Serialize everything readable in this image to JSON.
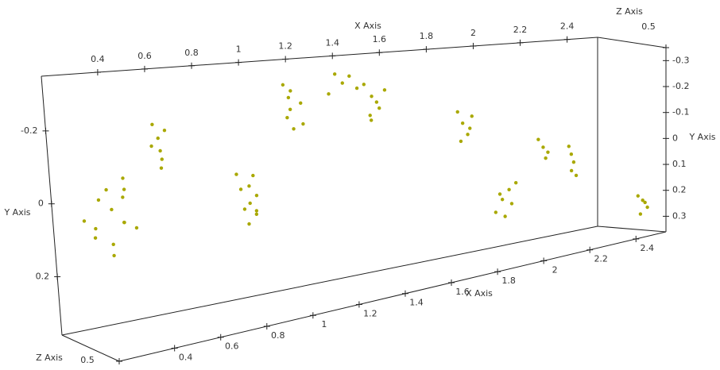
{
  "chart_data": {
    "type": "scatter3d",
    "x_label": "X Axis",
    "y_label": "Y Axis",
    "z_label": "Z Axis",
    "color": "#a9a800",
    "xlim": [
      0.16,
      2.53
    ],
    "ylim": [
      -0.35,
      0.36
    ],
    "zlim": [
      -0.3,
      0.5
    ],
    "xticks": [
      0.4,
      0.6,
      0.8,
      1,
      1.2,
      1.4,
      1.6,
      1.8,
      2,
      2.2,
      2.4
    ],
    "yticks_left": [
      -0.2,
      0,
      0.2
    ],
    "yticks_right": [
      -0.3,
      -0.2,
      -0.1,
      0,
      0.1,
      0.2,
      0.3
    ],
    "zticks": [
      0.5
    ],
    "x": [
      0.18,
      0.22,
      0.25,
      0.27,
      0.3,
      0.31,
      0.33,
      0.35,
      0.38,
      0.4,
      0.28,
      0.24,
      0.36,
      0.32,
      0.5,
      0.52,
      0.54,
      0.51,
      0.55,
      0.53,
      0.49,
      0.84,
      0.87,
      0.9,
      0.92,
      0.88,
      0.86,
      0.93,
      0.89,
      0.91,
      0.85,
      1.06,
      1.08,
      1.1,
      1.12,
      1.09,
      1.13,
      1.07,
      1.11,
      1.4,
      1.43,
      1.46,
      1.44,
      1.47,
      1.42,
      1.45,
      1.28,
      1.31,
      1.34,
      1.37,
      1.25,
      1.79,
      1.81,
      1.83,
      1.85,
      1.8,
      1.84,
      1.94,
      1.97,
      2.0,
      2.03,
      1.98,
      2.01,
      1.96,
      2.13,
      2.15,
      2.17,
      2.16,
      2.26,
      2.27,
      2.28,
      2.27,
      2.29,
      2.41,
      2.43,
      2.45,
      2.42,
      2.44
    ],
    "y": [
      0.02,
      -0.04,
      0.08,
      -0.06,
      0.0,
      0.1,
      -0.09,
      0.04,
      -0.02,
      0.06,
      0.12,
      0.05,
      -0.05,
      0.03,
      -0.22,
      -0.18,
      -0.14,
      -0.1,
      -0.2,
      -0.12,
      -0.16,
      -0.05,
      0.0,
      0.06,
      0.02,
      0.1,
      -0.02,
      0.08,
      0.04,
      -0.04,
      0.05,
      -0.3,
      -0.26,
      -0.22,
      -0.18,
      -0.28,
      -0.24,
      -0.2,
      -0.16,
      -0.28,
      -0.24,
      -0.2,
      -0.16,
      -0.26,
      -0.18,
      -0.22,
      -0.32,
      -0.29,
      -0.31,
      -0.27,
      -0.26,
      -0.16,
      -0.12,
      -0.08,
      -0.14,
      -0.06,
      -0.1,
      0.2,
      0.16,
      0.13,
      0.11,
      0.22,
      0.18,
      0.14,
      -0.03,
      0.0,
      0.02,
      0.04,
      0.01,
      0.04,
      0.07,
      0.1,
      0.12,
      0.2,
      0.22,
      0.25,
      0.27,
      0.23
    ],
    "z": [
      0.1,
      0.2,
      0.0,
      0.15,
      0.1,
      0.05,
      0.2,
      0.1,
      0.0,
      0.1,
      0.15,
      0.05,
      0.1,
      0.2,
      0.1,
      0.1,
      0.05,
      0.15,
      0.1,
      0.1,
      0.1,
      0.1,
      0.05,
      0.15,
      0.1,
      0.1,
      0.2,
      0.05,
      0.1,
      0.1,
      0.15,
      0.1,
      0.1,
      0.05,
      0.15,
      0.1,
      0.1,
      0.1,
      0.05,
      0.1,
      0.1,
      0.1,
      0.05,
      0.15,
      0.1,
      0.1,
      0.1,
      0.1,
      0.1,
      0.1,
      0.1,
      0.1,
      0.1,
      0.1,
      0.1,
      0.1,
      0.1,
      0.1,
      0.1,
      0.1,
      0.1,
      0.1,
      0.1,
      0.1,
      0.1,
      0.1,
      0.1,
      0.1,
      0.1,
      0.1,
      0.1,
      0.1,
      0.1,
      0.5,
      0.5,
      0.5,
      0.5,
      0.5
    ]
  }
}
